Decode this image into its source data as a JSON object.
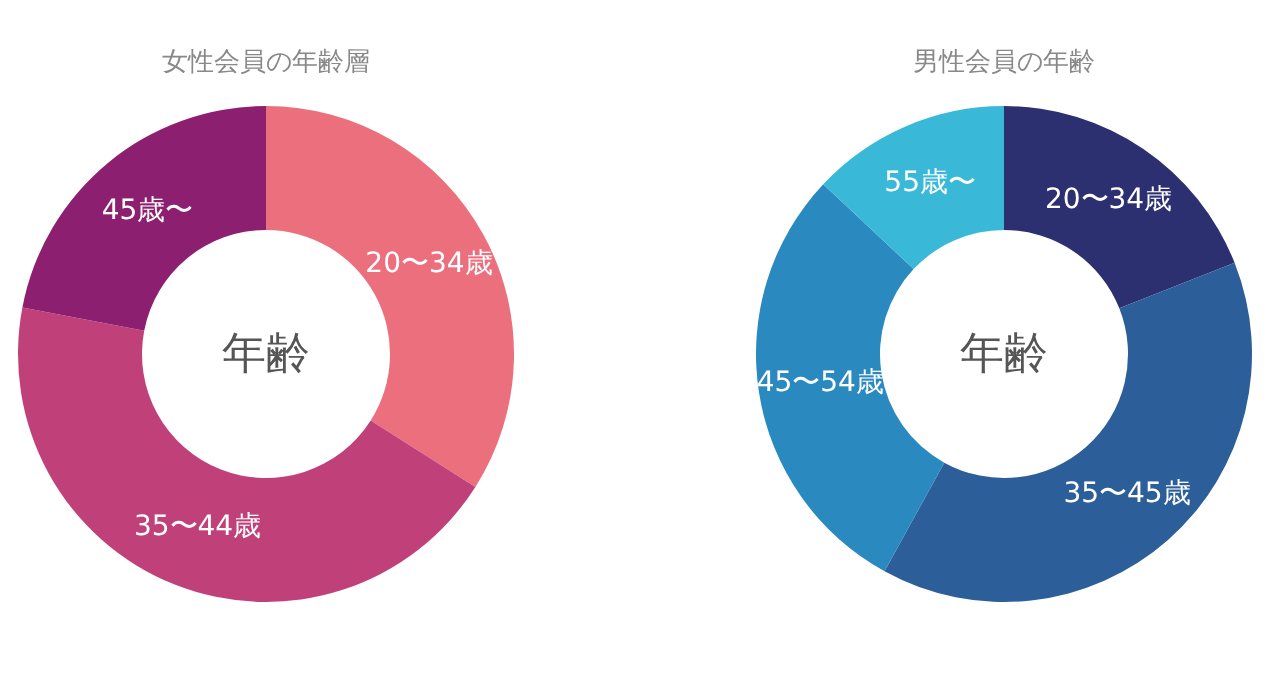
{
  "chart_data": [
    {
      "type": "donut",
      "title": "女性会員の年齢層",
      "categories": [
        "20〜34歳",
        "35〜44歳",
        "45歳〜"
      ],
      "values": [
        34,
        44,
        22
      ],
      "colors": [
        "#ec6f7e",
        "#c0417a",
        "#8d1f70"
      ],
      "annotations": [
        "年齢"
      ]
    },
    {
      "type": "donut",
      "title": "男性会員の年齢",
      "categories": [
        "20〜34歳",
        "35〜45歳",
        "45〜54歳",
        "55歳〜"
      ],
      "values": [
        19,
        39,
        29,
        13
      ],
      "colors": [
        "#2c3070",
        "#2c5e9a",
        "#2a8ac0",
        "#3ab8d8"
      ],
      "annotations": [
        "年齢"
      ]
    }
  ]
}
